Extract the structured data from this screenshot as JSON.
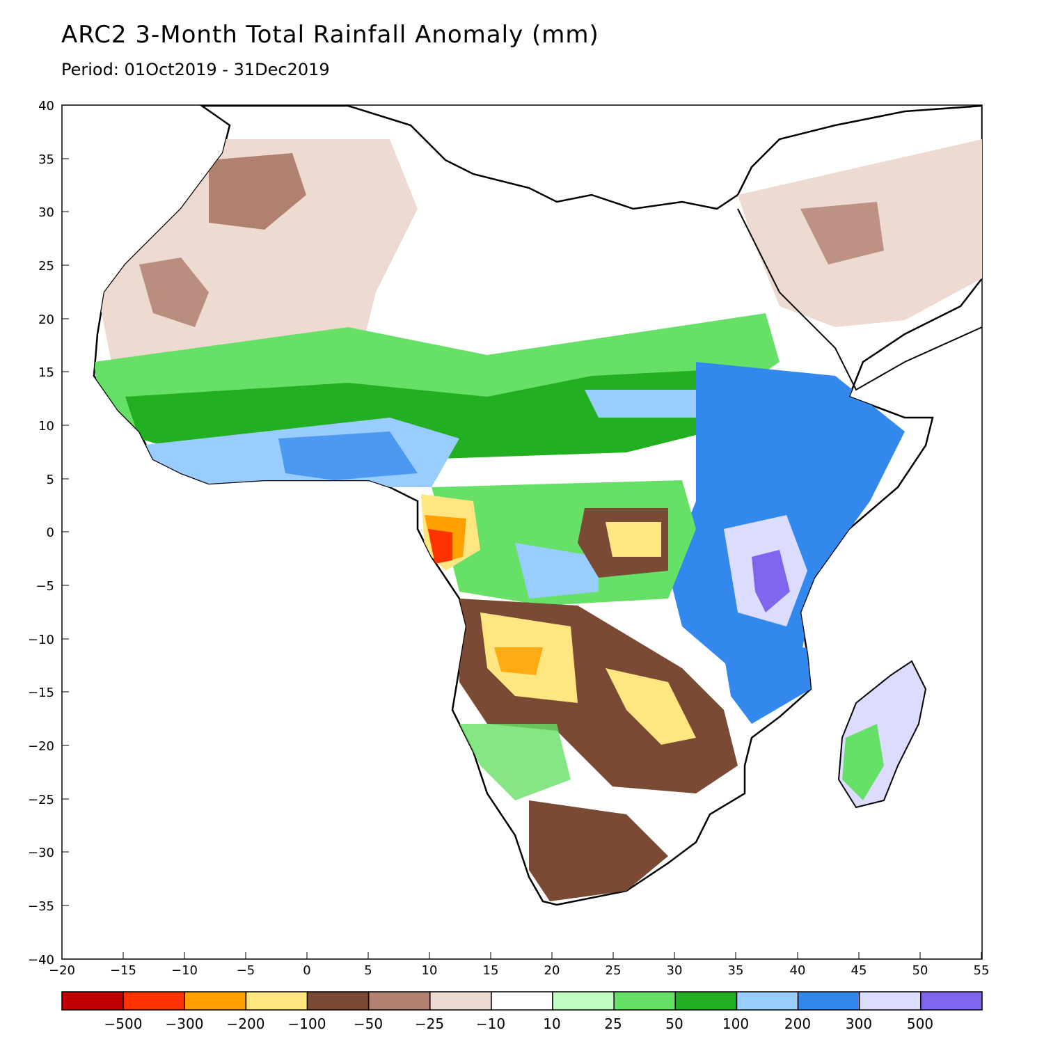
{
  "title": "ARC2 3-Month Total Rainfall Anomaly (mm)",
  "subtitle": "Period: 01Oct2019 - 31Dec2019",
  "axes": {
    "x_ticks": [
      "−20",
      "−15",
      "−10",
      "−5",
      "0",
      "5",
      "10",
      "15",
      "20",
      "25",
      "30",
      "35",
      "40",
      "45",
      "50",
      "55"
    ],
    "y_ticks": [
      "40",
      "35",
      "30",
      "25",
      "20",
      "15",
      "10",
      "5",
      "0",
      "−5",
      "−10",
      "−15",
      "−20",
      "−25",
      "−30",
      "−35",
      "−40"
    ],
    "x_range": [
      -20,
      55
    ],
    "y_range": [
      -40,
      40
    ]
  },
  "legend": {
    "colors": [
      "#c00000",
      "#ff3300",
      "#ffa000",
      "#ffe680",
      "#7a4a35",
      "#b08070",
      "#eddad0",
      "#ffffff",
      "#c0ffc0",
      "#66e066",
      "#22b022",
      "#99ccff",
      "#3388ee",
      "#dcdcff",
      "#8066ee"
    ],
    "labels": [
      "−500",
      "−300",
      "−200",
      "−100",
      "−50",
      "−25",
      "−10",
      "10",
      "25",
      "50",
      "100",
      "200",
      "300",
      "500"
    ]
  },
  "map": {
    "region": "Africa",
    "palette": {
      "ocean": "#ffffff",
      "dry_strong": "#7a4a35",
      "dry_mod": "#b08070",
      "dry_light": "#eddad0",
      "normal": "#ffffff",
      "wet_light": "#c0ffc0",
      "wet_mod": "#66e066",
      "wet": "#22b022",
      "very_wet": "#99ccff",
      "very_wet2": "#3388ee",
      "extreme_wet": "#dcdcff",
      "extreme_wet2": "#8066ee",
      "deficit_orange": "#ffa000",
      "deficit_yellow": "#ffe680",
      "deficit_red": "#ff3300",
      "deficit_dark": "#c00000"
    }
  }
}
